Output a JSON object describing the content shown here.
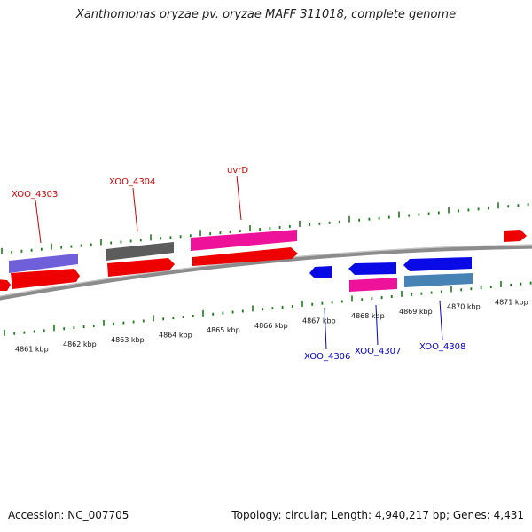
{
  "title": "Xanthomonas oryzae pv. oryzae MAFF 311018, complete genome",
  "footer": {
    "accession": "Accession: NC_007705",
    "topology": "Topology: circular; Length: 4,940,217 bp; Genes: 4,431"
  },
  "colors": {
    "backbone": "#8c8c8c",
    "tick": "#1f7a1f",
    "label_forward": "#cc0000",
    "label_reverse": "#0000cc",
    "red_cds": "#ee0000",
    "pink_cds": "#ee1199",
    "purple_cds": "#6f5fd8",
    "dark_gray_cds": "#5c5c5c",
    "blue_cds": "#0a0ae6",
    "steel_blue_cds": "#4682b4"
  },
  "scale_labels": [
    "4861 kbp",
    "4862 kbp",
    "4863 kbp",
    "4864 kbp",
    "4865 kbp",
    "4866 kbp",
    "4867 kbp",
    "4868 kbp",
    "4869 kbp",
    "4870 kbp",
    "4871 kbp"
  ],
  "gene_labels": {
    "forward": [
      "XOO_4303",
      "XOO_4304",
      "uvrD"
    ],
    "reverse": [
      "XOO_4306",
      "XOO_4307",
      "XOO_4308"
    ]
  }
}
